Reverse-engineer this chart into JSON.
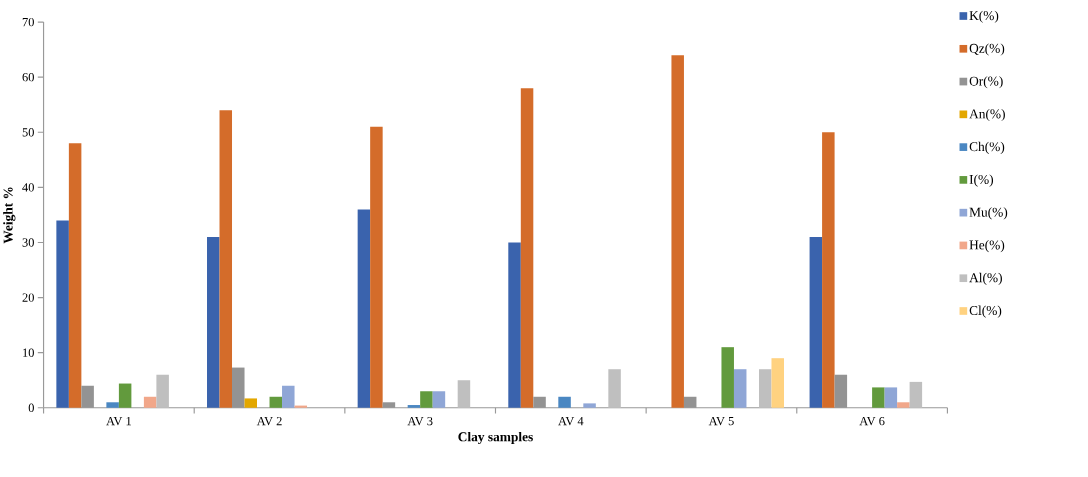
{
  "chart_data": {
    "type": "bar",
    "xlabel": "Clay samples",
    "ylabel": "Weight %",
    "categories": [
      "AV 1",
      "AV 2",
      "AV 3",
      "AV 4",
      "AV 5",
      "AV 6"
    ],
    "ylim": [
      0,
      70
    ],
    "yticks": [
      0,
      10,
      20,
      30,
      40,
      50,
      60,
      70
    ],
    "legend": "right",
    "grid": false,
    "series": [
      {
        "name": "K(%)",
        "color": "#3a63ad",
        "values": [
          34,
          31,
          36,
          30,
          null,
          31
        ]
      },
      {
        "name": "Qz(%)",
        "color": "#d46c2a",
        "values": [
          48,
          54,
          51,
          58,
          64,
          50
        ]
      },
      {
        "name": "Or(%)",
        "color": "#939393",
        "values": [
          4,
          7.3,
          1,
          2,
          2,
          6
        ]
      },
      {
        "name": "An(%)",
        "color": "#e3a700",
        "values": [
          null,
          1.7,
          null,
          null,
          null,
          null
        ]
      },
      {
        "name": "Ch(%)",
        "color": "#4a87c2",
        "values": [
          1,
          null,
          0.5,
          2,
          null,
          null
        ]
      },
      {
        "name": "I(%)",
        "color": "#629a3d",
        "values": [
          4.4,
          2,
          3,
          null,
          11,
          3.7
        ]
      },
      {
        "name": "Mu(%)",
        "color": "#8fa6d6",
        "values": [
          null,
          4,
          3,
          0.8,
          7,
          3.7
        ]
      },
      {
        "name": "He(%)",
        "color": "#f1a78a",
        "values": [
          2,
          0.4,
          null,
          null,
          null,
          1
        ]
      },
      {
        "name": "Al(%)",
        "color": "#bfbfbf",
        "values": [
          6,
          null,
          5,
          7,
          7,
          4.7
        ]
      },
      {
        "name": "Cl(%)",
        "color": "#ffd280",
        "values": [
          null,
          null,
          null,
          null,
          9,
          null
        ]
      }
    ]
  }
}
